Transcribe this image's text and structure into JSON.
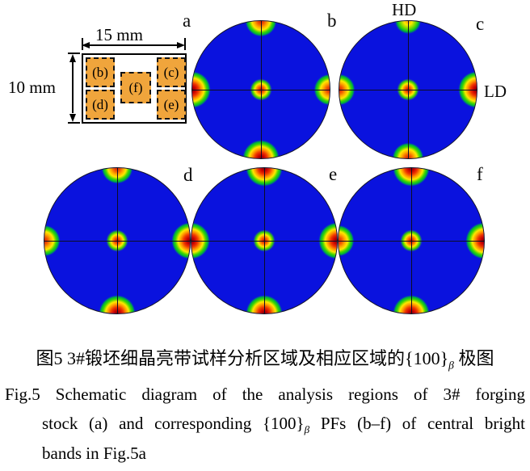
{
  "panel_labels": {
    "a": "a",
    "b": "b",
    "c": "c",
    "d": "d",
    "e": "e",
    "f": "f"
  },
  "axis_labels": {
    "top": "HD",
    "right": "LD"
  },
  "schematic": {
    "width_label": "15 mm",
    "height_label": "10 mm",
    "region_fill_color": "#f0a53c",
    "regions": [
      {
        "id": "b",
        "label": "(b)",
        "position": "top-left"
      },
      {
        "id": "c",
        "label": "(c)",
        "position": "top-right"
      },
      {
        "id": "f",
        "label": "(f)",
        "position": "center"
      },
      {
        "id": "d",
        "label": "(d)",
        "position": "bottom-left"
      },
      {
        "id": "e",
        "label": "(e)",
        "position": "bottom-right"
      }
    ]
  },
  "pole_figures": {
    "type": "pole-figure-heatmap",
    "family": "{100}β",
    "colormap": "jet",
    "background_color": "#0a12de",
    "hotspot_colors": {
      "core": "#c80000",
      "mid": "#ffe800",
      "halo": "#00b43c"
    },
    "figures": [
      {
        "id": "b",
        "spots": {
          "top": "med",
          "right": "med",
          "bottom": "high",
          "left": "high",
          "center": "ctr"
        }
      },
      {
        "id": "c",
        "spots": {
          "top": "low",
          "right": "high",
          "bottom": "med",
          "left": "med",
          "center": "ctr"
        }
      },
      {
        "id": "d",
        "spots": {
          "top": "med",
          "right": "high",
          "bottom": "high",
          "left": "med",
          "center": "ctr"
        }
      },
      {
        "id": "e",
        "spots": {
          "top": "high",
          "right": "high",
          "bottom": "high",
          "left": "high",
          "center": "ctr"
        }
      },
      {
        "id": "f",
        "spots": {
          "top": "high",
          "right": "high",
          "bottom": "high",
          "left": "med",
          "center": "ctr"
        }
      }
    ]
  },
  "caption": {
    "cn": {
      "pre": "图5  3#锻坯细晶亮带试样分析区域及相应区域的{100}",
      "sub": "β",
      "post": " 极图"
    },
    "en1": "Fig.5 Schematic diagram of the analysis regions of 3# forging",
    "en2": {
      "pre": "stock (a) and corresponding {100}",
      "sub": "β",
      "post": " PFs (b–f) of central bright"
    },
    "en3": "bands in Fig.5a"
  }
}
